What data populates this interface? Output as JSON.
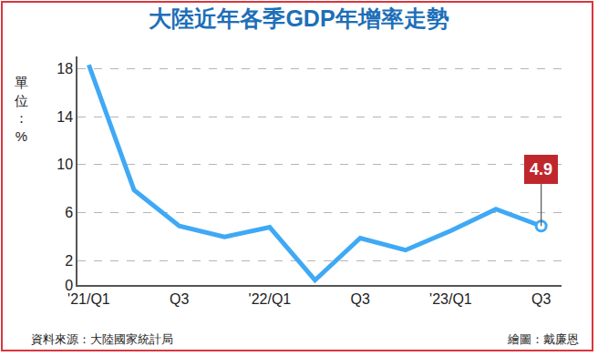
{
  "chart_data": {
    "type": "line",
    "title": "大陸近年各季GDP年增率走勢",
    "y_label": "單位：%",
    "categories": [
      "'21/Q1",
      null,
      "Q3",
      null,
      "'22/Q1",
      null,
      "Q3",
      null,
      "'23/Q1",
      null,
      "Q3"
    ],
    "values": [
      18.3,
      7.9,
      4.9,
      4.0,
      4.8,
      0.4,
      3.9,
      2.9,
      4.5,
      6.3,
      4.9
    ],
    "color": "#3fa9f5",
    "ylim": [
      0,
      19
    ],
    "yticks": [
      0,
      2,
      6,
      10,
      14,
      18
    ],
    "grid": true,
    "annotations": [
      {
        "text": "4.9"
      }
    ],
    "source": "資料來源：大陸國家統計局",
    "credit": "繪圖：戴廉恩"
  }
}
